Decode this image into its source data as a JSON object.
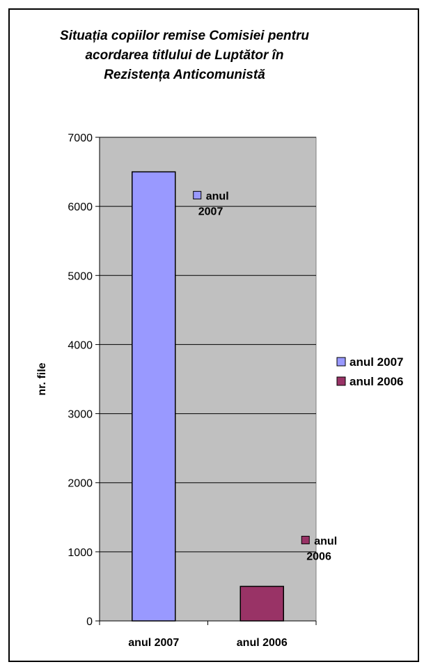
{
  "chart_data": {
    "type": "bar",
    "title": "Situația copiilor remise Comisiei pentru acordarea titlului de Luptător în Rezistența Anticomunistă",
    "title_lines": [
      "Situația copiilor remise Comisiei pentru",
      "acordarea titlului de Luptător în",
      "Rezistența Anticomunistă"
    ],
    "categories": [
      "anul 2007",
      "anul 2006"
    ],
    "series": [
      {
        "name": "anul 2007",
        "values": [
          6500,
          null
        ],
        "color": "#9999ff",
        "data_label_lines": [
          "anul",
          "2007"
        ]
      },
      {
        "name": "anul 2006",
        "values": [
          null,
          500
        ],
        "color": "#993366",
        "data_label_lines": [
          "anul",
          "2006"
        ]
      }
    ],
    "xlabel": "",
    "ylabel": "nr. file",
    "ylim": [
      0,
      7000
    ],
    "yticks": [
      0,
      1000,
      2000,
      3000,
      4000,
      5000,
      6000,
      7000
    ],
    "grid": true,
    "plot_background": "#c0c0c0",
    "legend_position": "right"
  }
}
